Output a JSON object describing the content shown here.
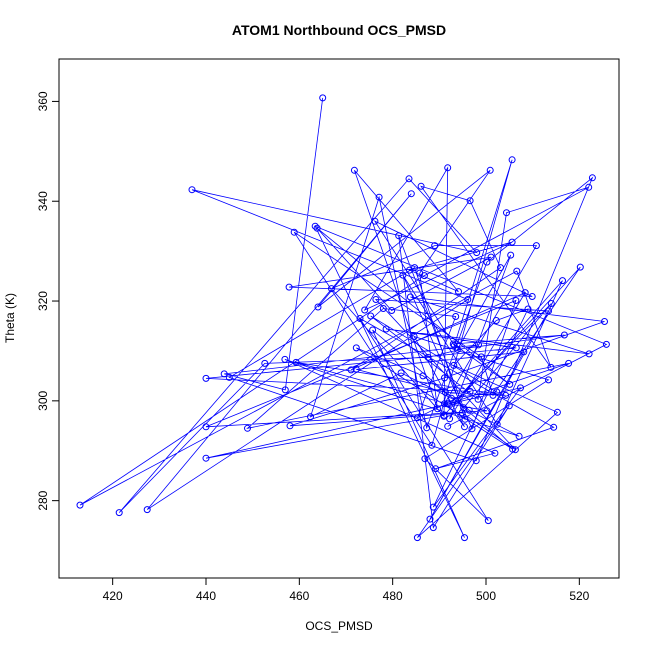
{
  "chart_data": {
    "type": "line",
    "title": "ATOM1 Northbound OCS_PMSD",
    "xlabel": "OCS_PMSD",
    "ylabel": "Theta (K)",
    "xlim": [
      408.5,
      528.5
    ],
    "ylim": [
      264.5,
      368.5
    ],
    "x_ticks": [
      "420",
      "440",
      "460",
      "480",
      "500",
      "520"
    ],
    "y_ticks": [
      "280",
      "300",
      "320",
      "340",
      "360"
    ],
    "grid": false,
    "legend": "none",
    "color": "#0000ff",
    "markers": "open-circle",
    "series": [
      {
        "x": [
          465.0,
          457.0,
          443.9,
          498.4,
          487.6,
          452.6,
          421.4,
          483.5,
          498.0,
          437.0,
          496.1,
          427.4,
          484.0,
          464.0,
          500.9,
          485.8,
          489.6,
          471.8,
          494.1,
          483.6,
          505.6,
          474.0,
          491.8,
          491.0,
          466.9,
          489.0,
          510.8,
          491.1,
          495.5,
          484.7,
          445.0,
          497.9,
          522.8,
          500.2,
          487.3,
          477.1,
          462.4,
          481.8,
          492.6,
          502.3,
          475.3,
          498.3,
          504.4,
          522.0,
          486.8,
          413.0,
          506.6,
          513.9,
          486.1,
          496.6,
          503.1,
          471.1,
          508.4,
          492.2,
          505.3,
          493.9,
          516.8,
          493.0,
          505.1,
          463.8,
          479.8,
          501.1,
          457.8,
          509.9,
          476.2,
          493.2,
          505.6,
          488.4,
          458.9,
          499.0,
          501.5,
          520.2,
          491.0,
          440.0,
          507.4,
          488.7,
          509.0,
          502.2,
          493.1,
          515.3,
          485.3,
          505.0,
          488.7,
          481.3,
          495.2,
          514.0,
          493.5,
          516.4,
          502.4,
          482.2,
          497.0,
          506.4,
          440.0,
          500.2,
          492.0,
          517.7,
          448.9,
          478.0,
          493.5,
          485.3,
          496.6,
          440.0,
          506.5,
          478.6,
          522.1,
          483.8,
          525.4,
          491.1,
          458.0,
          494.9,
          506.3,
          476.4,
          513.4,
          488.0,
          508.1,
          472.2,
          491.3,
          504.2,
          459.3,
          491.7,
          495.4,
          484.6,
          513.4,
          486.9,
          500.5,
          473.0,
          514.5,
          489.2,
          501.9,
          456.9,
          507.1,
          496.4,
          486.5,
          472.2,
          505.7,
          475.7,
          495.4,
          463.4,
          525.8,
          491.8
        ],
        "y": [
          360.7,
          302.2,
          305.4,
          311.2,
          308.7,
          307.5,
          277.6,
          344.5,
          329.7,
          342.3,
          320.3,
          278.2,
          341.5,
          318.8,
          346.2,
          325.6,
          298.4,
          346.2,
          321.9,
          326.2,
          331.8,
          318.2,
          346.7,
          296.9,
          322.5,
          331.1,
          331.1,
          299.4,
          296.3,
          326.7,
          304.7,
          288.0,
          344.7,
          327.8,
          294.6,
          340.8,
          296.8,
          305.6,
          300.5,
          301.8,
          317.0,
          300.3,
          337.7,
          342.8,
          325.1,
          279.1,
          326.0,
          306.7,
          343.0,
          340.1,
          326.7,
          306.2,
          321.7,
          296.4,
          329.2,
          310.3,
          313.2,
          311.4,
          303.3,
          334.6,
          318.1,
          328.8,
          322.8,
          320.9,
          336.0,
          311.1,
          348.3,
          291.1,
          333.8,
          308.8,
          301.1,
          326.8,
          297.1,
          288.5,
          302.6,
          278.7,
          318.4,
          316.1,
          307.1,
          297.7,
          272.6,
          299.0,
          274.6,
          333.1,
          298.6,
          319.5,
          300.0,
          324.1,
          295.3,
          325.2,
          294.4,
          320.1,
          294.8,
          298.0,
          299.4,
          307.5,
          294.5,
          318.5,
          316.9,
          296.6,
          301.9,
          304.5,
          310.6,
          314.4,
          309.4,
          320.8,
          315.9,
          304.6,
          295.0,
          297.6,
          290.2,
          320.3,
          318.0,
          276.3,
          309.8,
          306.3,
          301.7,
          301.1,
          307.7,
          299.4,
          294.8,
          312.9,
          304.2,
          288.4,
          276.0,
          316.5,
          294.7,
          286.4,
          289.5,
          308.3,
          292.9,
          298.1,
          305.0,
          310.6,
          290.3,
          314.2,
          272.6,
          335.0,
          311.3,
          294.9
        ]
      }
    ]
  }
}
